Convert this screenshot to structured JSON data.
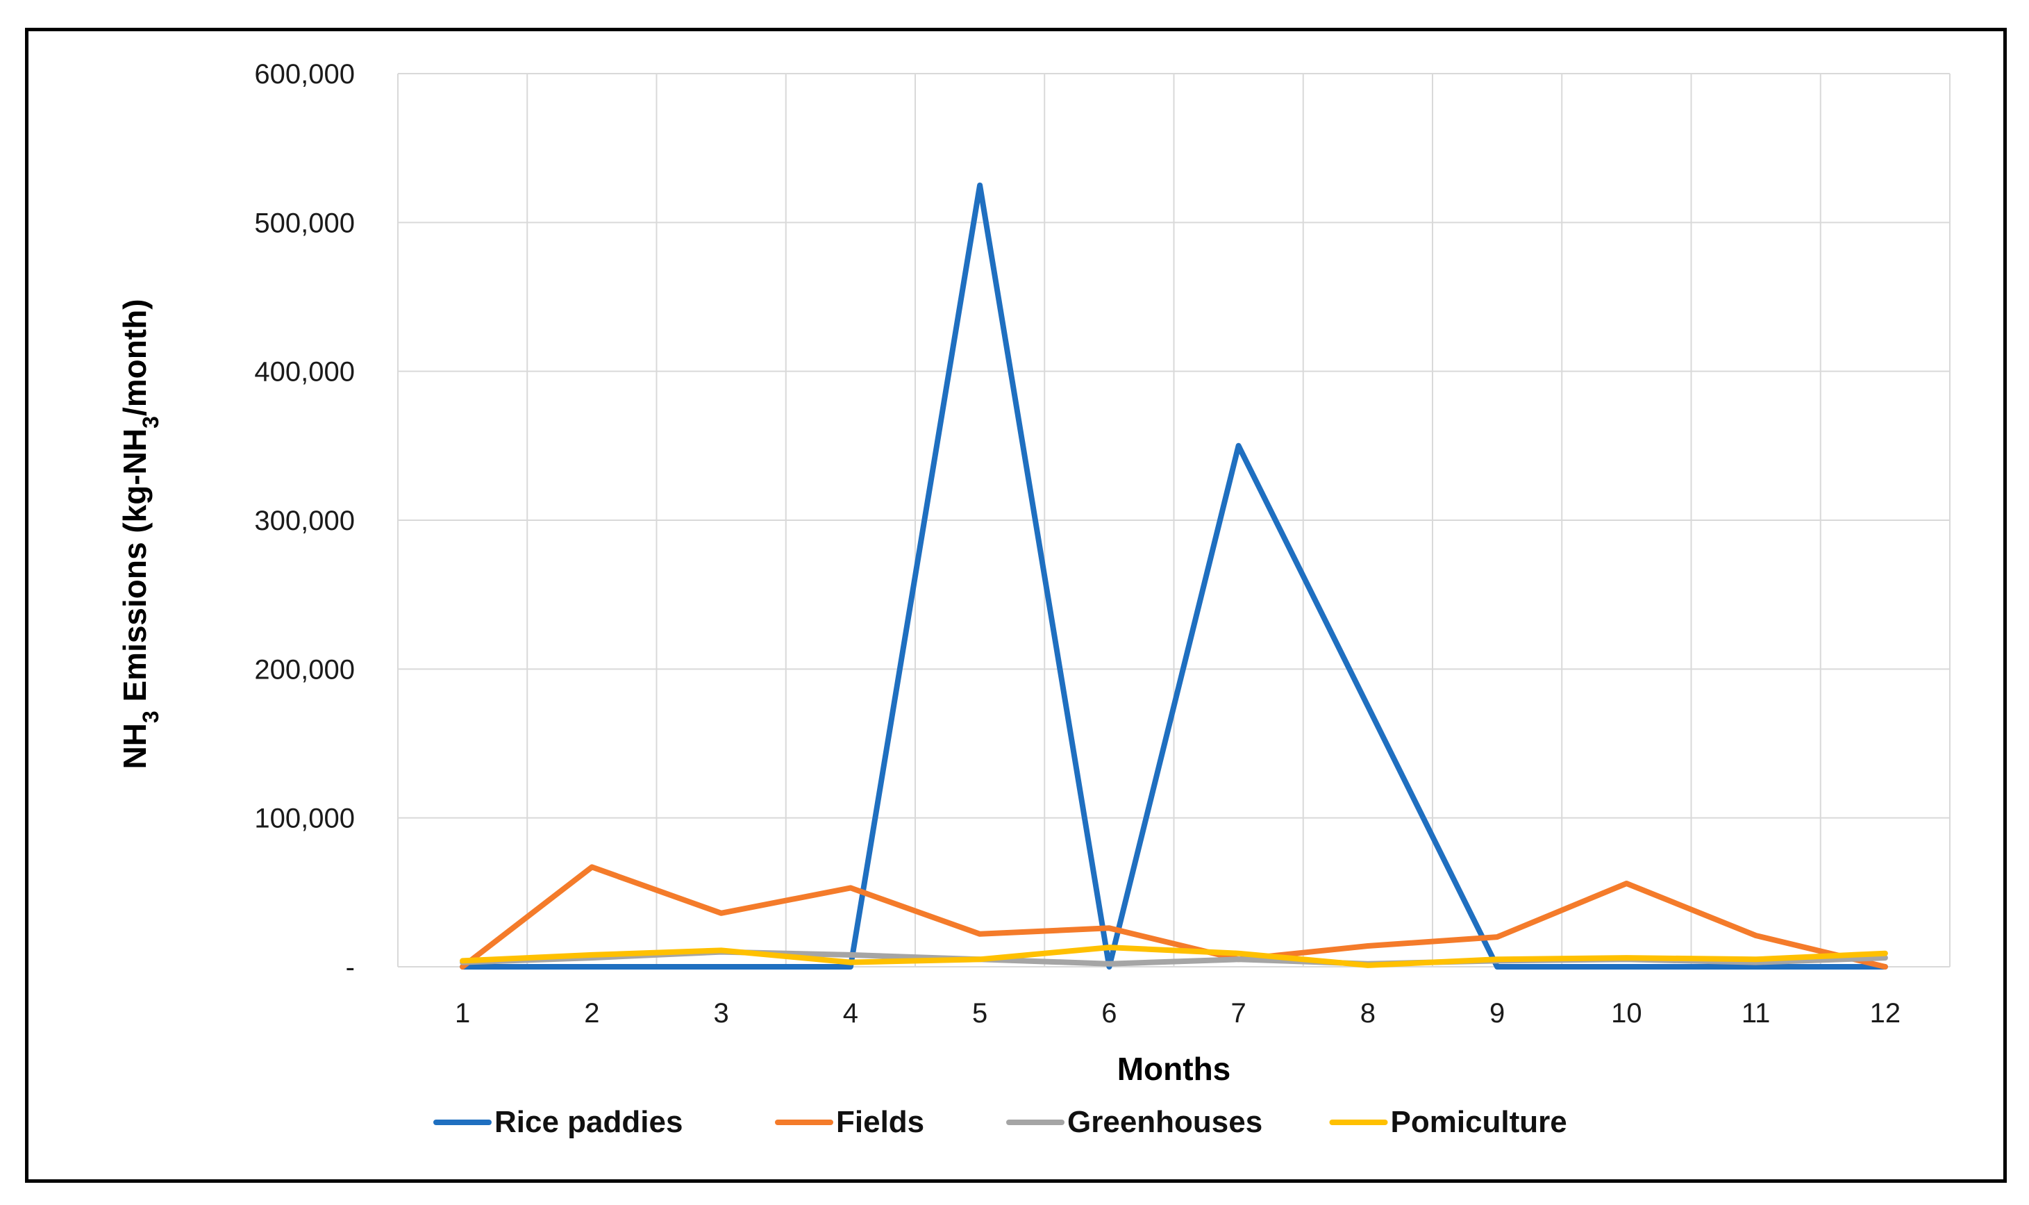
{
  "chart_data": {
    "type": "line",
    "title": "",
    "xlabel": "Months",
    "ylabel_parts": {
      "pre": "NH",
      "sub1": "3",
      "mid": " Emissions (kg-NH",
      "sub2": "3",
      "post": "/month)"
    },
    "categories": [
      "1",
      "2",
      "3",
      "4",
      "5",
      "6",
      "7",
      "8",
      "9",
      "10",
      "11",
      "12"
    ],
    "ylim": [
      0,
      600000
    ],
    "yticks": [
      0,
      100000,
      200000,
      300000,
      400000,
      500000,
      600000
    ],
    "ytick_labels": [
      "-",
      "100,000",
      "200,000",
      "300,000",
      "400,000",
      "500,000",
      "600,000"
    ],
    "grid": true,
    "legend_position": "bottom",
    "series": [
      {
        "name": "Rice paddies",
        "color": "#1F6FC0",
        "values": [
          0,
          0,
          0,
          0,
          525000,
          0,
          350000,
          175000,
          0,
          0,
          0,
          0
        ]
      },
      {
        "name": "Fields",
        "color": "#F47B2A",
        "values": [
          0,
          67000,
          36000,
          53000,
          22000,
          26000,
          5000,
          14000,
          20000,
          56000,
          21000,
          0
        ]
      },
      {
        "name": "Greenhouses",
        "color": "#A5A5A5",
        "values": [
          3000,
          6000,
          10000,
          8000,
          5000,
          2000,
          5000,
          2000,
          4000,
          5000,
          3000,
          6000
        ]
      },
      {
        "name": "Pomiculture",
        "color": "#FFC000",
        "values": [
          4000,
          8000,
          11000,
          3000,
          5000,
          13000,
          9000,
          1000,
          5000,
          6000,
          5000,
          9000
        ]
      }
    ]
  }
}
